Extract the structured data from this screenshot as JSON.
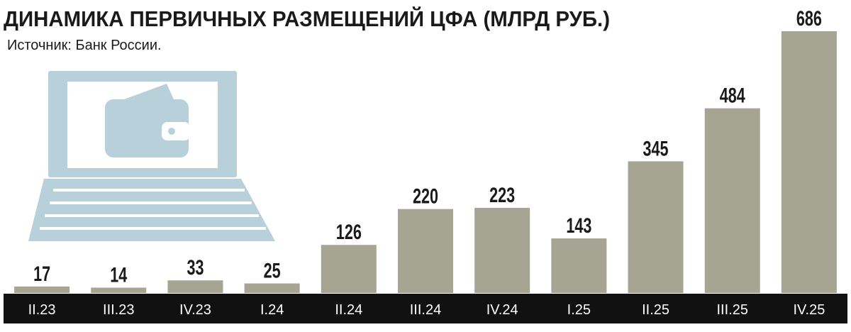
{
  "chart_data": {
    "type": "bar",
    "title": "ДИНАМИКА ПЕРВИЧНЫХ РАЗМЕЩЕНИЙ ЦФА (МЛРД РУБ.)",
    "subtitle": "Источник: Банк России.",
    "categories": [
      "II.23",
      "III.23",
      "IV.23",
      "I.24",
      "II.24",
      "III.24",
      "IV.24",
      "I.25",
      "II.25",
      "III.25",
      "IV.25"
    ],
    "values": [
      17,
      14,
      33,
      25,
      126,
      220,
      223,
      143,
      345,
      484,
      686
    ],
    "color": "#a6a492"
  }
}
